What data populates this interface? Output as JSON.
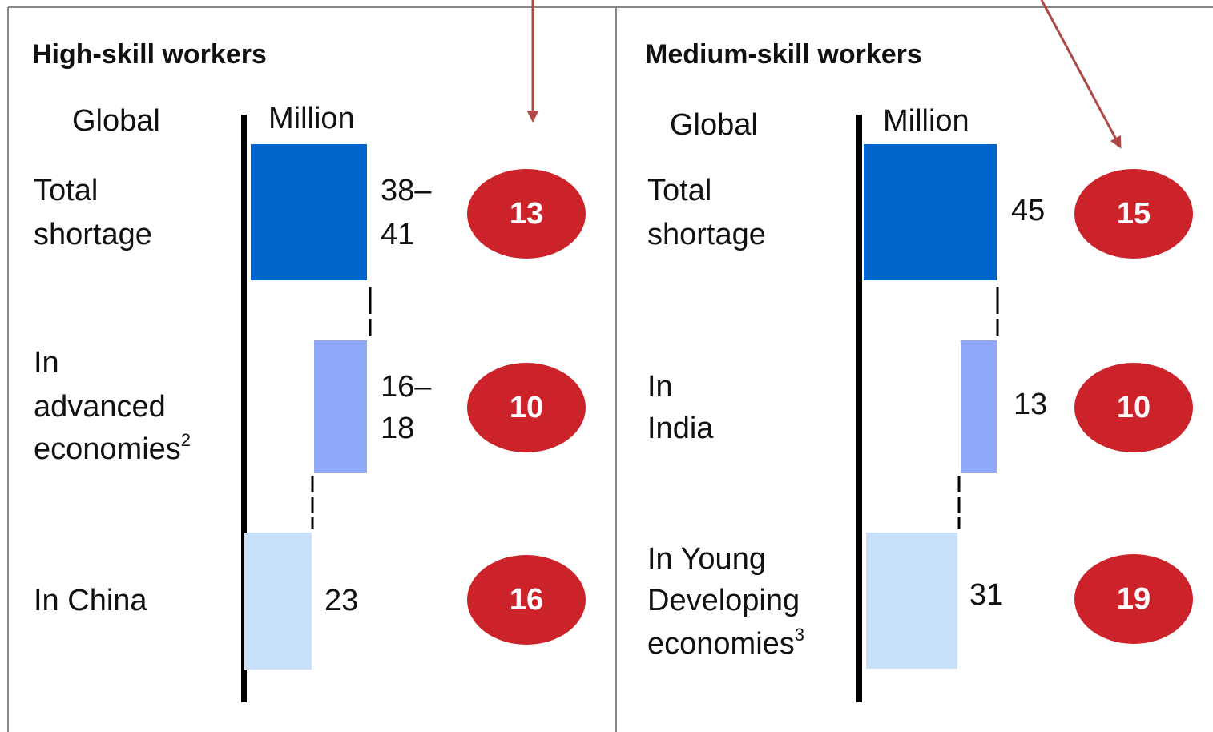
{
  "panels": [
    {
      "title": "High-skill workers",
      "scope": "Global",
      "unit": "Million",
      "rows": [
        {
          "label": [
            "Total",
            "shortage"
          ],
          "value": [
            "38–",
            "41"
          ],
          "badge": "13"
        },
        {
          "label": [
            "In",
            "advanced",
            "economies"
          ],
          "note": "2",
          "value": [
            "16–",
            "18"
          ],
          "badge": "10"
        },
        {
          "label": [
            "In China"
          ],
          "value": [
            "23"
          ],
          "badge": "16"
        }
      ]
    },
    {
      "title": "Medium-skill workers",
      "scope": "Global",
      "unit": "Million",
      "rows": [
        {
          "label": [
            "Total",
            "shortage"
          ],
          "value": [
            "45"
          ],
          "badge": "15"
        },
        {
          "label": [
            "In",
            "India"
          ],
          "value": [
            "13"
          ],
          "badge": "10"
        },
        {
          "label": [
            "In Young",
            "Developing",
            "economies"
          ],
          "note": "3",
          "value": [
            "31"
          ],
          "badge": "19"
        }
      ]
    }
  ]
}
